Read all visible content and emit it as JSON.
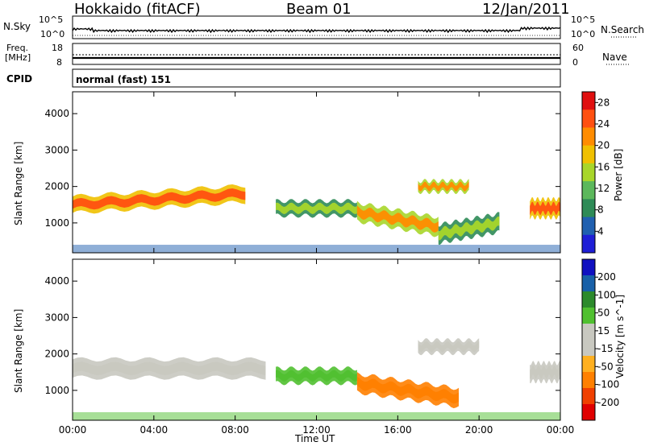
{
  "header": {
    "station": "Hokkaido (fitACF)",
    "beam": "Beam 01",
    "date": "12/Jan/2011"
  },
  "top_panel": {
    "left_label": "N.Sky",
    "left_ticks": [
      "10^5",
      "10^0"
    ],
    "right_label": "N.Search",
    "right_ticks": [
      "10^5",
      "10^0"
    ]
  },
  "freq_panel": {
    "left_label_line1": "Freq.",
    "left_label_line2": "[MHz]",
    "left_ticks": [
      "18",
      "8"
    ],
    "right_ticks": [
      "60",
      "0"
    ],
    "right_label": "Nave"
  },
  "cpid": {
    "label": "CPID",
    "value": "normal (fast) 151"
  },
  "colors": {
    "power_scale": [
      "#1f1fd6",
      "#2060b0",
      "#2e8b57",
      "#5cb85c",
      "#a8d62a",
      "#f0c000",
      "#ff8c00",
      "#ff5010",
      "#e01010"
    ],
    "velocity_scale": [
      "#e00000",
      "#f04000",
      "#ff8000",
      "#ffb020",
      "#c8c8c0",
      "#c8c8c0",
      "#50c030",
      "#2c8a2c",
      "#1860a8",
      "#1010c0"
    ]
  },
  "chart_data": [
    {
      "type": "heatmap",
      "title": "",
      "xlabel": "Time UT",
      "ylabel": "Slant Range [km]",
      "x_ticks": [
        "00:00",
        "04:00",
        "08:00",
        "12:00",
        "16:00",
        "20:00",
        "00:00"
      ],
      "y_ticks": [
        "1000",
        "2000",
        "3000",
        "4000"
      ],
      "xlim": [
        0,
        24
      ],
      "ylim": [
        180,
        4600
      ],
      "colorbar": {
        "label": "Power [dB]",
        "ticks": [
          "4",
          "8",
          "12",
          "16",
          "20",
          "24",
          "28"
        ],
        "range": [
          0,
          30
        ]
      },
      "bands": [
        {
          "x": [
            0,
            8.5
          ],
          "y_center": [
            1500,
            1800
          ],
          "width": 450,
          "peak": 28
        },
        {
          "x": [
            10,
            14
          ],
          "y_center": 1400,
          "width": 400,
          "peak": 16
        },
        {
          "x": [
            14,
            18
          ],
          "y_center": [
            1300,
            900
          ],
          "width": 500,
          "peak": 24
        },
        {
          "x": [
            17,
            19.5
          ],
          "y_center": 2000,
          "width": 300,
          "peak": 24
        },
        {
          "x": [
            18,
            21
          ],
          "y_center": [
            700,
            1000
          ],
          "width": 500,
          "peak": 16
        },
        {
          "x": [
            22.5,
            24
          ],
          "y_center": 1400,
          "width": 500,
          "peak": 28
        }
      ]
    },
    {
      "type": "heatmap",
      "title": "",
      "xlabel": "Time UT",
      "ylabel": "Slant Range [km]",
      "x_ticks": [
        "00:00",
        "04:00",
        "08:00",
        "12:00",
        "16:00",
        "20:00",
        "00:00"
      ],
      "y_ticks": [
        "1000",
        "2000",
        "3000",
        "4000"
      ],
      "xlim": [
        0,
        24
      ],
      "ylim": [
        180,
        4600
      ],
      "colorbar": {
        "label": "Velocity [m s^-1]",
        "ticks": [
          "200",
          "100",
          "50",
          "15",
          "-15",
          "-50",
          "-100",
          "-200"
        ],
        "range": [
          -250,
          250
        ]
      },
      "bands": [
        {
          "x": [
            0,
            9.5
          ],
          "y_center": 1600,
          "width": 500,
          "velocity": 0
        },
        {
          "x": [
            10,
            14
          ],
          "y_center": 1400,
          "width": 400,
          "velocity": 50
        },
        {
          "x": [
            14,
            19
          ],
          "y_center": [
            1200,
            800
          ],
          "width": 500,
          "velocity": -50
        },
        {
          "x": [
            17,
            20
          ],
          "y_center": 2200,
          "width": 350,
          "velocity": 0
        },
        {
          "x": [
            22.5,
            24
          ],
          "y_center": 1500,
          "width": 500,
          "velocity": 0
        }
      ]
    }
  ]
}
